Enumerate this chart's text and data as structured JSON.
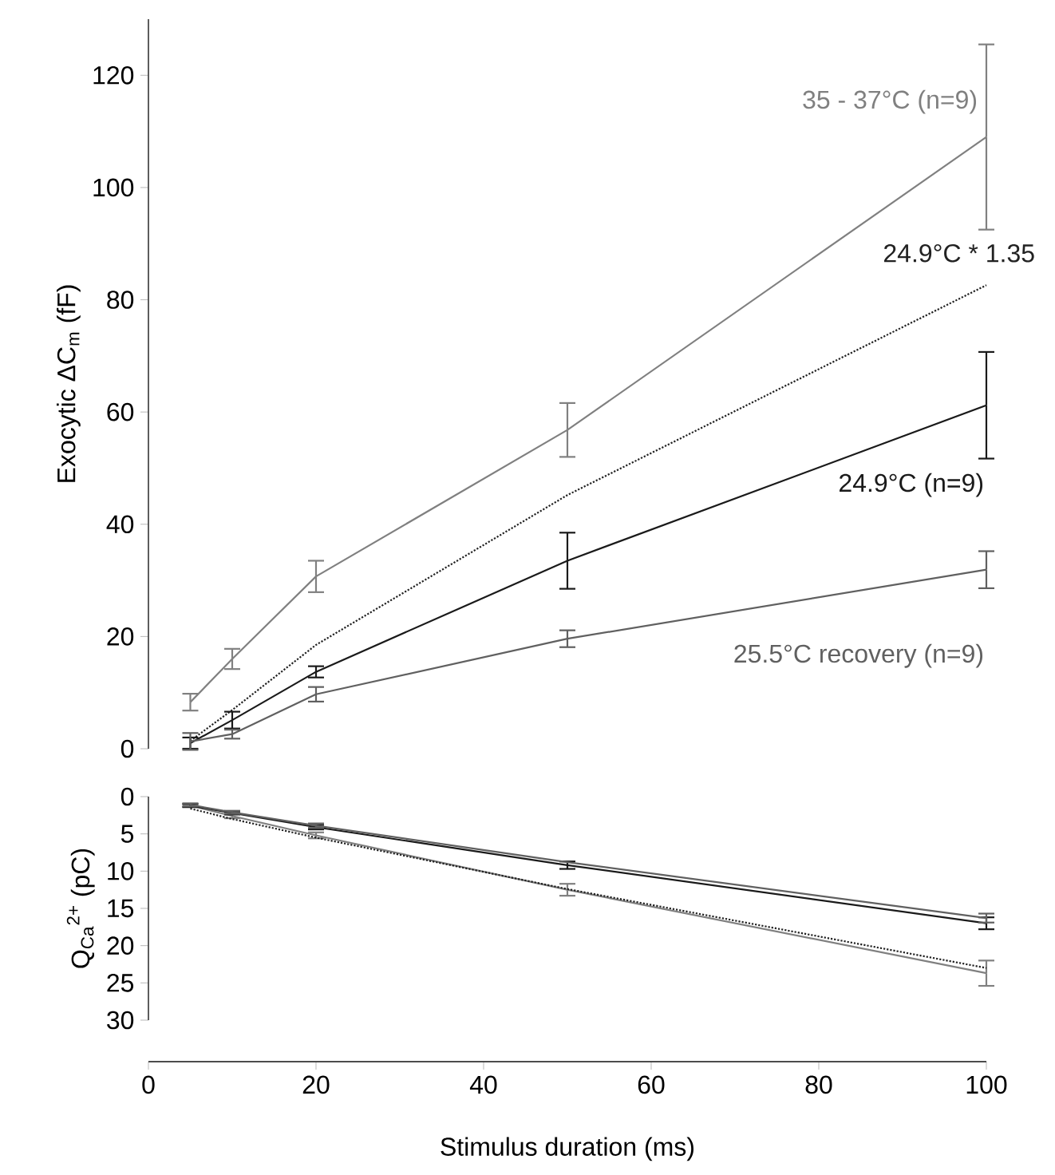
{
  "chart_data": [
    {
      "type": "line",
      "ylabel": "Exocytic ΔC$_{m}$ (fF)",
      "xlim": [
        0,
        100
      ],
      "ylim": [
        0,
        130
      ],
      "yticks": [
        0,
        20,
        40,
        60,
        80,
        100,
        120
      ],
      "tick_labels": "y",
      "x": [
        5,
        10,
        20,
        50,
        100
      ],
      "series": [
        {
          "name": "35 - 37°C (n=9)",
          "color": "#808080",
          "line_style": "solid",
          "values": [
            8.3,
            16,
            30.7,
            56.8,
            109
          ],
          "errors": [
            1.5,
            1.8,
            2.8,
            4.8,
            16.5
          ]
        },
        {
          "name": "24.9°C * 1.35",
          "color": "#222222",
          "line_style": "dotted",
          "values": [
            1.4,
            6.9,
            18.5,
            45.2,
            82.6
          ]
        },
        {
          "name": "24.9°C (n=9)",
          "color": "#1a1a1a",
          "line_style": "solid",
          "values": [
            1,
            5.1,
            13.7,
            33.5,
            61.2
          ],
          "errors": [
            1,
            1.5,
            1,
            5,
            9.5
          ]
        },
        {
          "name": "25.5°C recovery (n=9)",
          "color": "#606060",
          "line_style": "solid",
          "values": [
            1.3,
            2.6,
            9.7,
            19.6,
            31.9
          ],
          "errors": [
            1.5,
            0.8,
            1.3,
            1.5,
            3.3
          ]
        }
      ]
    },
    {
      "type": "line",
      "xlabel": "Stimulus duration (ms)",
      "ylabel": "Q$_{Ca}$$^{2+}$ (pC)",
      "xlim": [
        0,
        100
      ],
      "xticks": [
        0,
        20,
        40,
        60,
        80,
        100
      ],
      "ylim": [
        30,
        0
      ],
      "yticks": [
        0,
        5,
        10,
        15,
        20,
        25,
        30
      ],
      "x": [
        5,
        10,
        20,
        50,
        100
      ],
      "series": [
        {
          "color": "#808080",
          "line_style": "solid",
          "values": [
            1.2,
            2.6,
            5.2,
            12.5,
            23.7
          ],
          "errors": [
            0.2,
            0.3,
            0.4,
            0.8,
            1.7
          ]
        },
        {
          "color": "#222222",
          "line_style": "dotted",
          "values": [
            1.6,
            3,
            5.5,
            12.4,
            23
          ]
        },
        {
          "color": "#1a1a1a",
          "line_style": "solid",
          "values": [
            1.2,
            2.2,
            4.1,
            9.2,
            17
          ],
          "errors": [
            0.2,
            0.2,
            0.3,
            0.5,
            0.8
          ]
        },
        {
          "color": "#606060",
          "line_style": "solid",
          "values": [
            1.1,
            2.1,
            3.9,
            8.8,
            16.3
          ],
          "errors": [
            0.2,
            0.2,
            0.3,
            null,
            0.6
          ]
        }
      ]
    }
  ]
}
